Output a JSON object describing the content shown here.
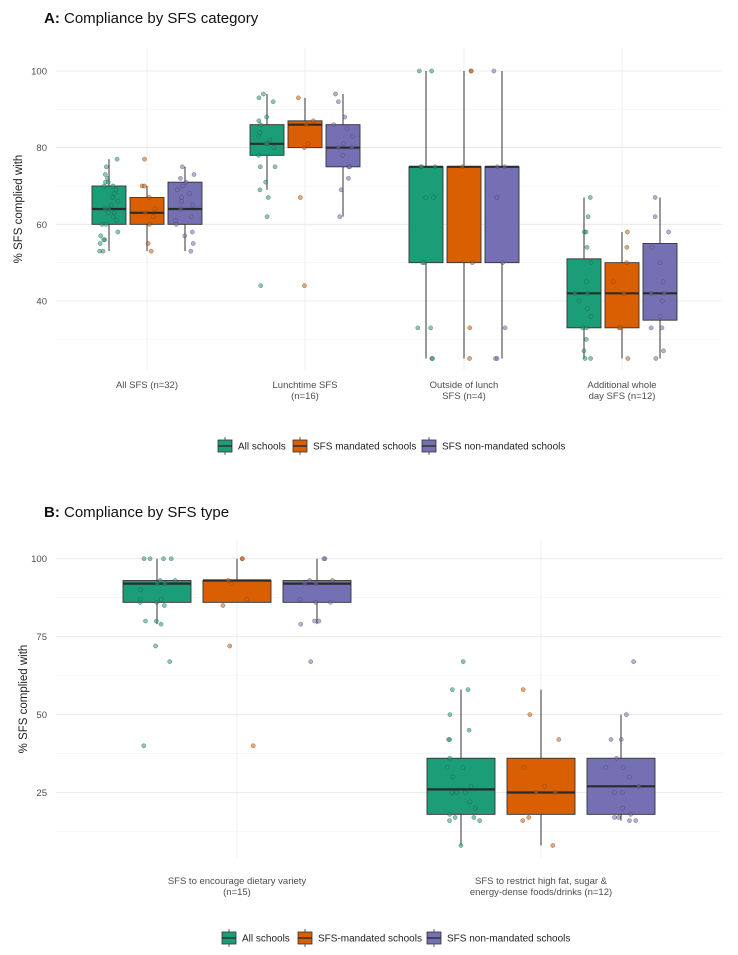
{
  "panels": [
    {
      "title_prefix": "A:",
      "title": "Compliance by SFS category",
      "chart_data": {
        "type": "boxplot",
        "ylabel": "% SFS complied with",
        "ylim": [
          22,
          106
        ],
        "yticks": [
          40,
          60,
          80,
          100
        ],
        "categories": [
          [
            "All SFS (n=32)"
          ],
          [
            "Lunchtime SFS",
            "(n=16)"
          ],
          [
            "Outside of lunch",
            "SFS (n=4)"
          ],
          [
            "Additional whole",
            "day SFS (n=12)"
          ]
        ],
        "series": [
          {
            "name": "All schools",
            "color": "#1b9e77",
            "boxes": [
              {
                "q1": 60,
                "median": 64,
                "q3": 70,
                "lo": 53,
                "hi": 77,
                "points": [
                  53,
                  53,
                  55,
                  56,
                  56,
                  57,
                  58,
                  60,
                  60,
                  61,
                  62,
                  63,
                  63,
                  64,
                  64,
                  65,
                  66,
                  67,
                  68,
                  69,
                  70,
                  70,
                  71,
                  71,
                  72,
                  73,
                  75,
                  77
                ]
              },
              {
                "q1": 78,
                "median": 81,
                "q3": 86,
                "lo": 69,
                "hi": 94,
                "points": [
                  44,
                  62,
                  67,
                  69,
                  71,
                  75,
                  75,
                  78,
                  80,
                  81,
                  81,
                  82,
                  83,
                  84,
                  86,
                  87,
                  88,
                  92,
                  93,
                  94
                ]
              },
              {
                "q1": 50,
                "median": 75,
                "q3": 75,
                "lo": 25,
                "hi": 100,
                "points": [
                  25,
                  25,
                  33,
                  33,
                  50,
                  50,
                  67,
                  67,
                  75,
                  75,
                  75,
                  100,
                  100
                ]
              },
              {
                "q1": 33,
                "median": 42,
                "q3": 51,
                "lo": 25,
                "hi": 67,
                "points": [
                  25,
                  25,
                  27,
                  30,
                  33,
                  33,
                  36,
                  38,
                  40,
                  42,
                  42,
                  45,
                  50,
                  54,
                  58,
                  58,
                  62,
                  67
                ]
              }
            ]
          },
          {
            "name": "SFS mandated schools",
            "color": "#d95f02",
            "boxes": [
              {
                "q1": 60,
                "median": 63,
                "q3": 67,
                "lo": 53,
                "hi": 70,
                "points": [
                  53,
                  55,
                  60,
                  62,
                  63,
                  64,
                  67,
                  70,
                  70,
                  77
                ]
              },
              {
                "q1": 80,
                "median": 86,
                "q3": 87,
                "lo": 80,
                "hi": 93,
                "points": [
                  44,
                  67,
                  80,
                  81,
                  86,
                  87,
                  93
                ]
              },
              {
                "q1": 50,
                "median": 75,
                "q3": 75,
                "lo": 25,
                "hi": 100,
                "points": [
                  25,
                  33,
                  50,
                  75,
                  100,
                  100
                ]
              },
              {
                "q1": 33,
                "median": 42,
                "q3": 50,
                "lo": 25,
                "hi": 58,
                "points": [
                  25,
                  33,
                  33,
                  42,
                  45,
                  50,
                  54,
                  58
                ]
              }
            ]
          },
          {
            "name": "SFS non-mandated schools",
            "color": "#7570b3",
            "boxes": [
              {
                "q1": 60,
                "median": 64,
                "q3": 71,
                "lo": 53,
                "hi": 75,
                "points": [
                  53,
                  55,
                  57,
                  58,
                  60,
                  61,
                  62,
                  64,
                  65,
                  66,
                  67,
                  68,
                  69,
                  70,
                  71,
                  72,
                  73,
                  75
                ]
              },
              {
                "q1": 75,
                "median": 80,
                "q3": 86,
                "lo": 62,
                "hi": 94,
                "points": [
                  62,
                  69,
                  72,
                  75,
                  75,
                  78,
                  80,
                  80,
                  81,
                  83,
                  85,
                  86,
                  88,
                  92,
                  94
                ]
              },
              {
                "q1": 50,
                "median": 75,
                "q3": 75,
                "lo": 25,
                "hi": 100,
                "points": [
                  25,
                  25,
                  33,
                  50,
                  67,
                  67,
                  75,
                  75,
                  100
                ]
              },
              {
                "q1": 35,
                "median": 42,
                "q3": 55,
                "lo": 25,
                "hi": 67,
                "points": [
                  25,
                  27,
                  33,
                  33,
                  36,
                  40,
                  42,
                  42,
                  45,
                  50,
                  54,
                  58,
                  62,
                  67
                ]
              }
            ]
          }
        ]
      },
      "legend": [
        "All schools",
        "SFS mandated schools",
        "SFS non-mandated schools"
      ]
    },
    {
      "title_prefix": "B:",
      "title": "Compliance by SFS type",
      "chart_data": {
        "type": "boxplot",
        "ylabel": "% SFS complied with",
        "ylim": [
          4,
          106
        ],
        "yticks": [
          25,
          50,
          75,
          100
        ],
        "categories": [
          [
            "SFS to encourage dietary variety",
            "(n=15)"
          ],
          [
            "SFS to restrict high fat, sugar &",
            "energy-dense foods/drinks (n=12)"
          ]
        ],
        "series": [
          {
            "name": "All schools",
            "color": "#1b9e77",
            "boxes": [
              {
                "q1": 86,
                "median": 92,
                "q3": 93,
                "lo": 79,
                "hi": 100,
                "points": [
                  40,
                  67,
                  72,
                  79,
                  80,
                  80,
                  85,
                  86,
                  86,
                  87,
                  87,
                  90,
                  92,
                  92,
                  93,
                  93,
                  100,
                  100,
                  100,
                  100
                ]
              },
              {
                "q1": 18,
                "median": 26,
                "q3": 36,
                "lo": 8,
                "hi": 58,
                "points": [
                  8,
                  16,
                  16,
                  17,
                  17,
                  18,
                  20,
                  22,
                  25,
                  25,
                  25,
                  27,
                  30,
                  33,
                  33,
                  36,
                  42,
                  42,
                  45,
                  50,
                  58,
                  58,
                  67
                ]
              }
            ]
          },
          {
            "name": "SFS-mandated schools",
            "color": "#d95f02",
            "boxes": [
              {
                "q1": 86,
                "median": 93,
                "q3": 93,
                "lo": 86,
                "hi": 100,
                "points": [
                  40,
                  72,
                  85,
                  87,
                  92,
                  93,
                  100,
                  100
                ]
              },
              {
                "q1": 18,
                "median": 25,
                "q3": 36,
                "lo": 8,
                "hi": 58,
                "points": [
                  8,
                  16,
                  17,
                  25,
                  25,
                  27,
                  33,
                  42,
                  50,
                  58
                ]
              }
            ]
          },
          {
            "name": "SFS non-mandated schools",
            "color": "#7570b3",
            "boxes": [
              {
                "q1": 86,
                "median": 92,
                "q3": 93,
                "lo": 79,
                "hi": 100,
                "points": [
                  67,
                  79,
                  80,
                  80,
                  86,
                  86,
                  87,
                  92,
                  92,
                  93,
                  93,
                  100,
                  100
                ]
              },
              {
                "q1": 18,
                "median": 27,
                "q3": 36,
                "lo": 16,
                "hi": 50,
                "points": [
                  16,
                  16,
                  17,
                  17,
                  18,
                  20,
                  25,
                  25,
                  27,
                  30,
                  33,
                  33,
                  36,
                  42,
                  42,
                  50,
                  67
                ]
              }
            ]
          }
        ]
      },
      "legend": [
        "All schools",
        "SFS-mandated schools",
        "SFS non-mandated schools"
      ]
    }
  ]
}
